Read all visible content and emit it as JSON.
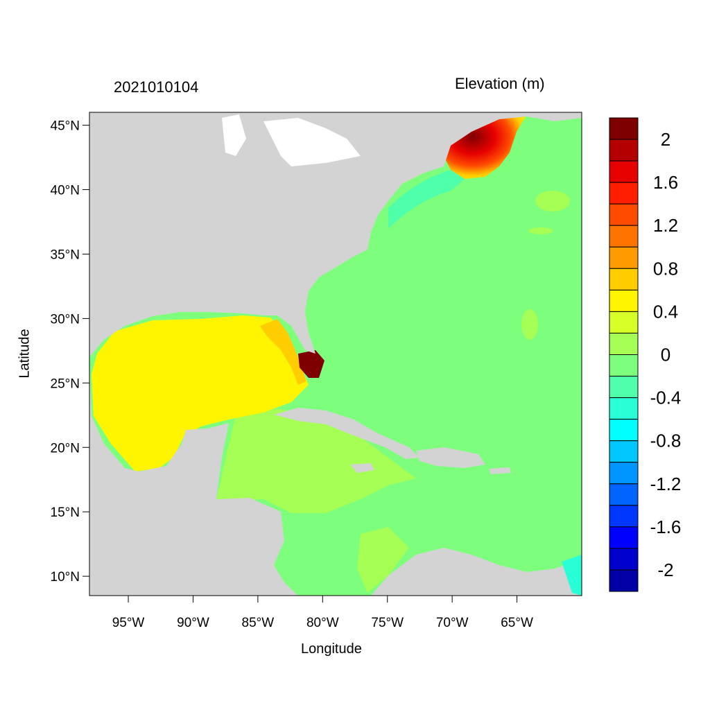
{
  "title_left": "2021010104",
  "title_right": "Elevation (m)",
  "xlabel": "Longitude",
  "ylabel": "Latitude",
  "x_ticks": [
    {
      "value": -95,
      "label": "95°W"
    },
    {
      "value": -90,
      "label": "90°W"
    },
    {
      "value": -85,
      "label": "85°W"
    },
    {
      "value": -80,
      "label": "80°W"
    },
    {
      "value": -75,
      "label": "75°W"
    },
    {
      "value": -70,
      "label": "70°W"
    },
    {
      "value": -65,
      "label": "65°W"
    }
  ],
  "y_ticks": [
    {
      "value": 45,
      "label": "45°N"
    },
    {
      "value": 40,
      "label": "40°N"
    },
    {
      "value": 35,
      "label": "35°N"
    },
    {
      "value": 30,
      "label": "30°N"
    },
    {
      "value": 25,
      "label": "25°N"
    },
    {
      "value": 20,
      "label": "20°N"
    },
    {
      "value": 15,
      "label": "15°N"
    },
    {
      "value": 10,
      "label": "10°N"
    }
  ],
  "lon_range": [
    -98,
    -60
  ],
  "lat_range": [
    8.5,
    46
  ],
  "colorbar": {
    "levels": [
      {
        "color": "#7f0000"
      },
      {
        "color": "#b40000"
      },
      {
        "color": "#e60000"
      },
      {
        "color": "#ff1e00"
      },
      {
        "color": "#ff4b00"
      },
      {
        "color": "#ff7300"
      },
      {
        "color": "#ff9b00"
      },
      {
        "color": "#ffcd00"
      },
      {
        "color": "#fff500"
      },
      {
        "color": "#d7ff28"
      },
      {
        "color": "#a5ff55"
      },
      {
        "color": "#7dff7d"
      },
      {
        "color": "#50ffaa"
      },
      {
        "color": "#28ffd7"
      },
      {
        "color": "#00ffff"
      },
      {
        "color": "#00c8ff"
      },
      {
        "color": "#0096ff"
      },
      {
        "color": "#0064ff"
      },
      {
        "color": "#0037ff"
      },
      {
        "color": "#0000ff"
      },
      {
        "color": "#0000cd"
      },
      {
        "color": "#0000a5"
      }
    ],
    "labels": [
      "2",
      "1.6",
      "1.2",
      "0.8",
      "0.4",
      "0",
      "-0.4",
      "-0.8",
      "-1.2",
      "-1.6",
      "-2"
    ]
  },
  "colors": {
    "land": "#d3d3d3",
    "ocean_zero": "#7dff7d",
    "gulf": "#fff500",
    "caribbean": "#a5ff55",
    "surge_high": "#7f0000"
  }
}
